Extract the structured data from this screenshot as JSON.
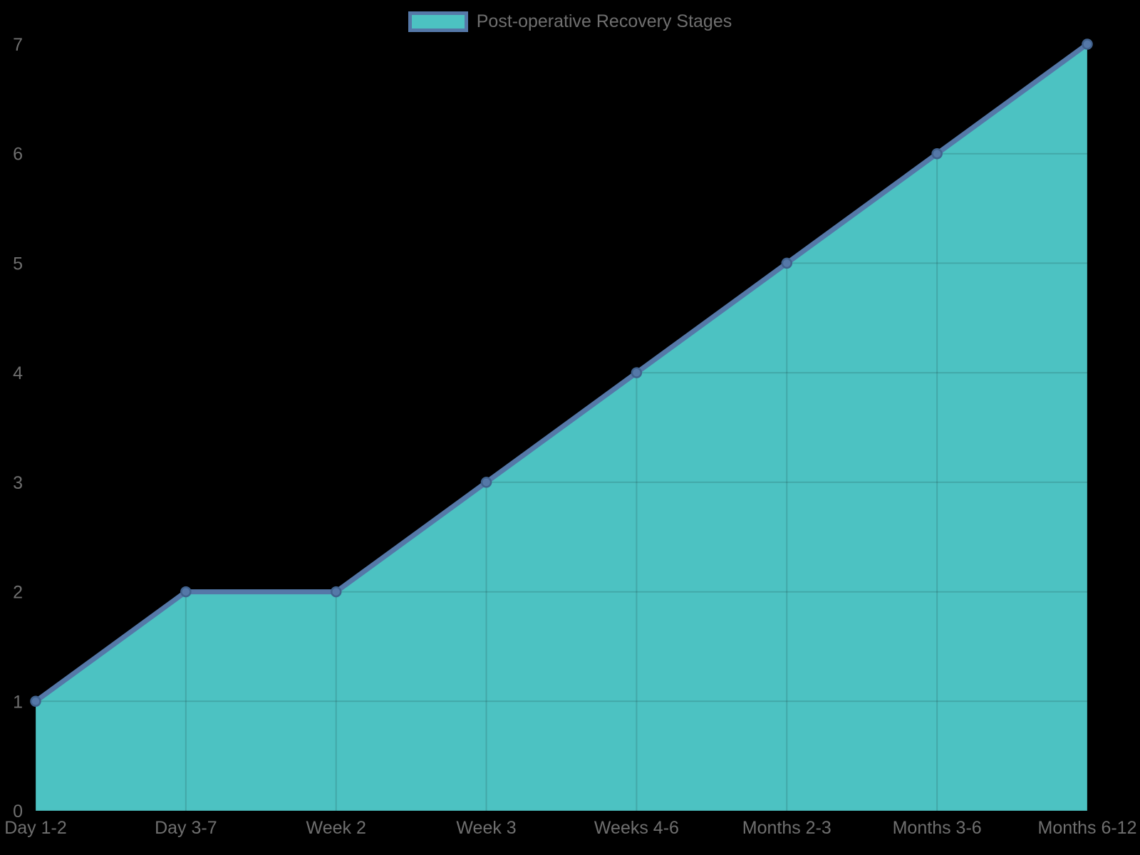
{
  "legend": {
    "label": "Post-operative Recovery Stages",
    "position": "top-center"
  },
  "colors": {
    "background": "#000000",
    "area_fill": "#4cc2c2",
    "line": "#5578a8",
    "marker_fill": "#5578a8",
    "marker_stroke": "#41628e",
    "grid": "rgba(0,0,0,0.13)",
    "text": "#6f6f6f"
  },
  "chart_data": {
    "type": "area",
    "title": "Post-operative Recovery Stages",
    "categories": [
      "Day 1-2",
      "Day 3-7",
      "Week 2",
      "Week 3",
      "Weeks 4-6",
      "Months 2-3",
      "Months 3-6",
      "Months 6-12"
    ],
    "values": [
      1,
      2,
      2,
      3,
      4,
      5,
      6,
      7
    ],
    "xlabel": "",
    "ylabel": "",
    "ylim": [
      0,
      7
    ],
    "yticks": [
      "0",
      "1",
      "2",
      "3",
      "4",
      "5",
      "6",
      "7"
    ],
    "grid": true,
    "legend_position": "top-center",
    "marker": "circle"
  }
}
